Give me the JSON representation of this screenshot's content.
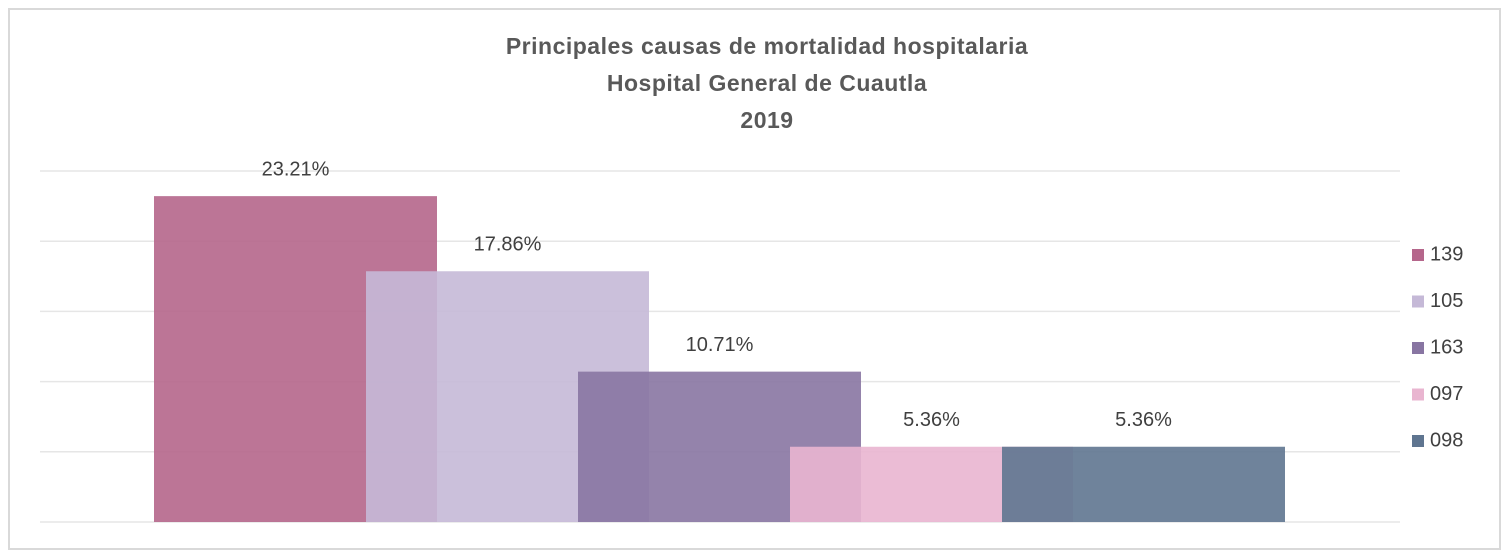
{
  "chart_data": {
    "type": "bar",
    "title": [
      "Principales causas de mortalidad hospitalaria",
      "Hospital General de Cuautla",
      "2019"
    ],
    "series": [
      {
        "name": "139",
        "color": "#b5668b",
        "values": [
          23.21
        ],
        "value_labels": [
          "23.21%"
        ]
      },
      {
        "name": "105",
        "color": "#c5b9d7",
        "values": [
          17.86
        ],
        "value_labels": [
          "17.86%"
        ]
      },
      {
        "name": "163",
        "color": "#8875a2",
        "values": [
          10.71
        ],
        "value_labels": [
          "10.71%"
        ]
      },
      {
        "name": "097",
        "color": "#e9b5d0",
        "values": [
          5.36
        ],
        "value_labels": [
          "5.36%"
        ]
      },
      {
        "name": "098",
        "color": "#5f7590",
        "values": [
          5.36
        ],
        "value_labels": [
          "5.36%"
        ]
      }
    ],
    "ylim": [
      0,
      25
    ],
    "yticks": [
      0,
      5,
      10,
      15,
      20,
      25
    ],
    "grid": true,
    "legend": "right"
  }
}
